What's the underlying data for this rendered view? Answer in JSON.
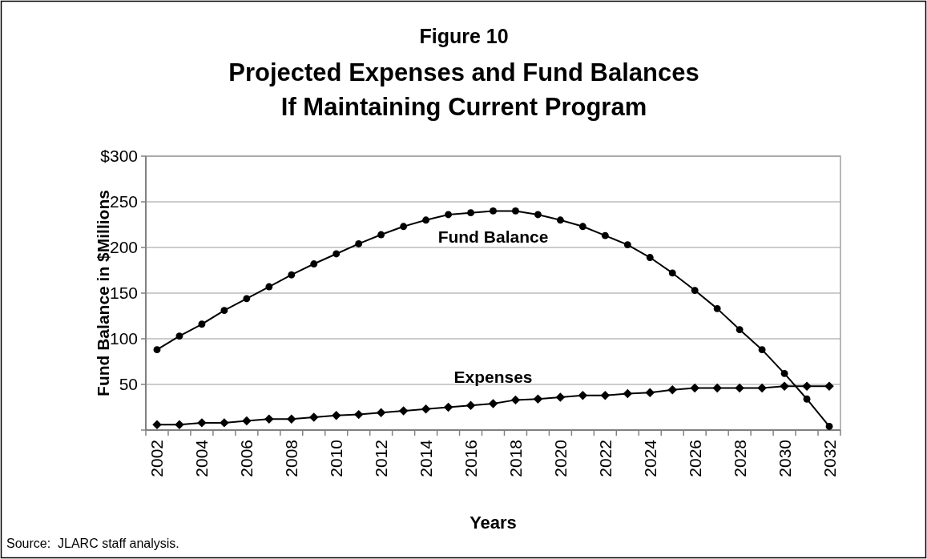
{
  "chart_data": {
    "type": "line",
    "title": "Figure 10",
    "subtitle": "Projected Expenses and Fund Balances\nIf Maintaining Current Program",
    "xlabel": "Years",
    "ylabel": "Fund Balance in $Millions",
    "annotations": [
      "Source:  JLARC staff analysis."
    ],
    "categories": [
      "2002",
      null,
      "2004",
      null,
      "2006",
      null,
      "2008",
      null,
      "2010",
      null,
      "2012",
      null,
      "2014",
      null,
      "2016",
      null,
      "2018",
      null,
      "2020",
      null,
      "2022",
      null,
      "2024",
      null,
      "2026",
      null,
      "2028",
      null,
      "2030",
      null,
      "2032"
    ],
    "series": [
      {
        "name": "Fund Balance",
        "color": "#000000",
        "marker": "circle",
        "values": [
          88,
          103,
          116,
          131,
          144,
          157,
          170,
          182,
          193,
          204,
          214,
          223,
          230,
          236,
          238,
          240,
          240,
          236,
          230,
          223,
          213,
          203,
          189,
          172,
          153,
          133,
          110,
          88,
          62,
          34,
          4
        ]
      },
      {
        "name": "Expenses",
        "color": "#000000",
        "marker": "diamond",
        "values": [
          6,
          6,
          8,
          8,
          10,
          12,
          12,
          14,
          16,
          17,
          19,
          21,
          23,
          25,
          27,
          29,
          33,
          34,
          36,
          38,
          38,
          40,
          41,
          44,
          46,
          46,
          46,
          46,
          48,
          48,
          48
        ]
      }
    ],
    "ylim": [
      0,
      300
    ],
    "yticks": [
      {
        "value": 0,
        "label": null
      },
      50,
      100,
      150,
      200,
      250,
      {
        "value": 300,
        "label": "$300"
      }
    ],
    "grid": "y",
    "line_style": "solid"
  }
}
